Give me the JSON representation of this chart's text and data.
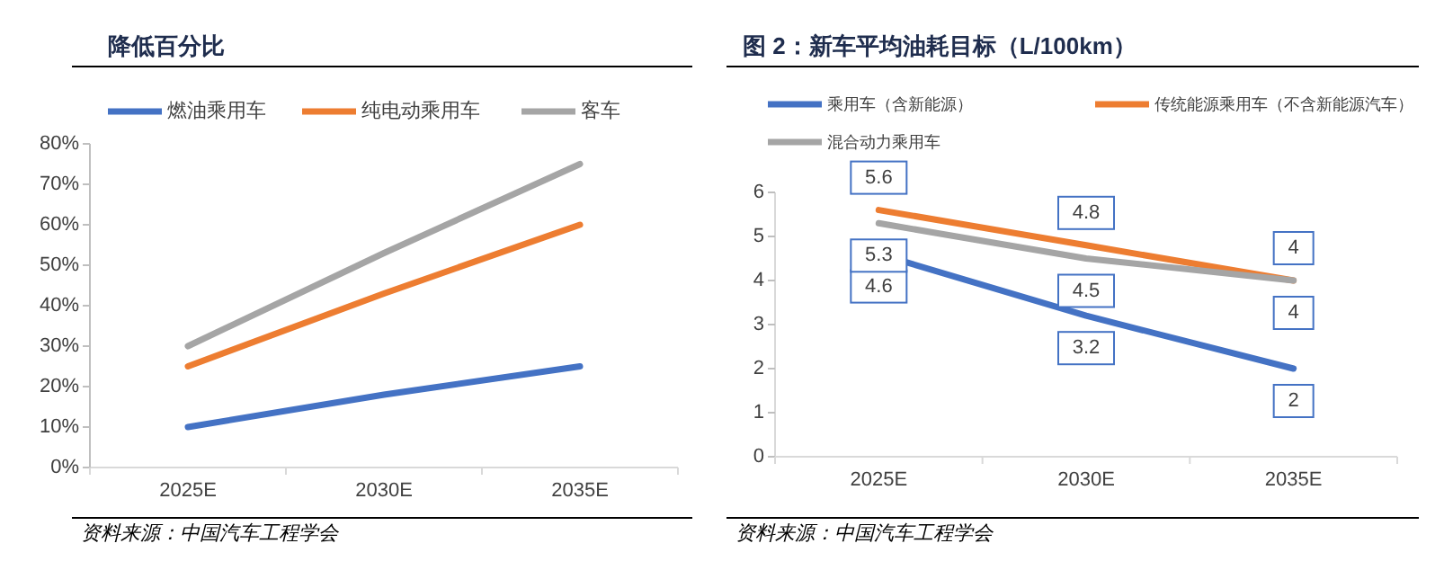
{
  "chart_data": [
    {
      "type": "line",
      "title": "降低百分比",
      "categories": [
        "2025E",
        "2030E",
        "2035E"
      ],
      "series": [
        {
          "name": "燃油乘用车",
          "color": "#4472c4",
          "values": [
            10,
            18,
            25
          ]
        },
        {
          "name": "纯电动乘用车",
          "color": "#ed7d31",
          "values": [
            25,
            43,
            60
          ]
        },
        {
          "name": "客车",
          "color": "#a5a5a5",
          "values": [
            30,
            53,
            75
          ]
        }
      ],
      "ylim": [
        0,
        80
      ],
      "yticks": [
        {
          "value": 0,
          "label": "0%"
        },
        {
          "value": 10,
          "label": "10%"
        },
        {
          "value": 20,
          "label": "20%"
        },
        {
          "value": 30,
          "label": "30%"
        },
        {
          "value": 40,
          "label": "40%"
        },
        {
          "value": 50,
          "label": "50%"
        },
        {
          "value": 60,
          "label": "60%"
        },
        {
          "value": 70,
          "label": "70%"
        },
        {
          "value": 80,
          "label": "80%"
        }
      ],
      "grid": false,
      "legend": "top",
      "marker": "none",
      "annotations": [
        "资料来源：中国汽车工程学会"
      ]
    },
    {
      "type": "line",
      "title": "图 2：新车平均油耗目标（L/100km）",
      "categories": [
        "2025E",
        "2030E",
        "2035E"
      ],
      "series": [
        {
          "name": "乘用车（含新能源）",
          "color": "#4472c4",
          "values": [
            4.6,
            3.2,
            2
          ]
        },
        {
          "name": "传统能源乘用车（不含新能源汽车）",
          "color": "#ed7d31",
          "values": [
            5.6,
            4.8,
            4
          ]
        },
        {
          "name": "混合动力乘用车",
          "color": "#a5a5a5",
          "values": [
            5.3,
            4.5,
            4
          ]
        }
      ],
      "ylim": [
        0,
        6
      ],
      "yticks": [
        0,
        1,
        2,
        3,
        4,
        5,
        6
      ],
      "grid": false,
      "legend": "top",
      "marker": "none",
      "data_labels": true,
      "annotations": [
        "资料来源：中国汽车工程学会"
      ]
    }
  ]
}
